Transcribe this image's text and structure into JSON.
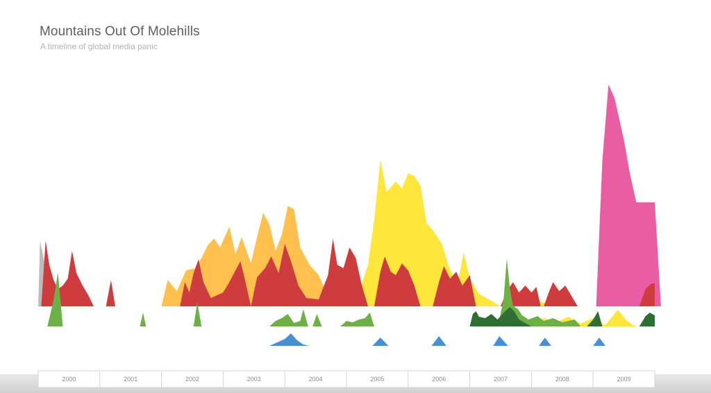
{
  "title": "Mountains Out Of Molehills",
  "subtitle": "A timeline of global media panic",
  "chart_data": {
    "type": "area",
    "title": "Mountains Out Of Molehills",
    "subtitle": "A timeline of global media panic",
    "x_ticks": [
      "2000",
      "2001",
      "2002",
      "2003",
      "2004",
      "2005",
      "2006",
      "2007",
      "2008",
      "2009"
    ],
    "xlim": [
      2000.0,
      2010.0
    ],
    "grid": false,
    "legend": "none",
    "series": [
      {
        "color": "#bcbcbc",
        "band": "upper",
        "points": [
          [
            2000.0,
            0
          ],
          [
            2000.03,
            95
          ],
          [
            2000.12,
            55
          ],
          [
            2000.25,
            22
          ],
          [
            2000.4,
            8
          ],
          [
            2000.55,
            0
          ]
        ]
      },
      {
        "color": "#ffc04e",
        "band": "upper",
        "points": [
          [
            2002.0,
            0
          ],
          [
            2002.1,
            38
          ],
          [
            2002.25,
            22
          ],
          [
            2002.4,
            52
          ],
          [
            2002.55,
            55
          ],
          [
            2002.65,
            70
          ],
          [
            2002.75,
            88
          ],
          [
            2002.85,
            98
          ],
          [
            2002.95,
            85
          ],
          [
            2003.1,
            115
          ],
          [
            2003.2,
            75
          ],
          [
            2003.3,
            100
          ],
          [
            2003.45,
            62
          ],
          [
            2003.55,
            100
          ],
          [
            2003.65,
            135
          ],
          [
            2003.75,
            118
          ],
          [
            2003.85,
            80
          ],
          [
            2003.95,
            103
          ],
          [
            2004.05,
            145
          ],
          [
            2004.15,
            140
          ],
          [
            2004.25,
            85
          ],
          [
            2004.4,
            60
          ],
          [
            2004.55,
            45
          ],
          [
            2004.7,
            15
          ],
          [
            2004.85,
            5
          ],
          [
            2004.95,
            0
          ]
        ]
      },
      {
        "color": "#ffe63a",
        "band": "upper",
        "points": [
          [
            2005.1,
            0
          ],
          [
            2005.2,
            20
          ],
          [
            2005.35,
            60
          ],
          [
            2005.45,
            125
          ],
          [
            2005.55,
            212
          ],
          [
            2005.65,
            165
          ],
          [
            2005.8,
            180
          ],
          [
            2005.9,
            170
          ],
          [
            2006.0,
            192
          ],
          [
            2006.1,
            188
          ],
          [
            2006.2,
            174
          ],
          [
            2006.3,
            120
          ],
          [
            2006.4,
            110
          ],
          [
            2006.55,
            90
          ],
          [
            2006.65,
            60
          ],
          [
            2006.8,
            30
          ],
          [
            2006.9,
            78
          ],
          [
            2007.0,
            40
          ],
          [
            2007.15,
            18
          ],
          [
            2007.35,
            8
          ],
          [
            2007.5,
            0
          ],
          [
            2007.7,
            8
          ],
          [
            2007.85,
            0
          ],
          [
            2008.05,
            12
          ],
          [
            2008.2,
            5
          ],
          [
            2008.4,
            14
          ],
          [
            2008.6,
            4
          ],
          [
            2008.8,
            0
          ]
        ]
      },
      {
        "color": "#ffe63a",
        "band": "middle",
        "points": [
          [
            2007.6,
            0
          ],
          [
            2007.8,
            6
          ],
          [
            2008.0,
            3
          ],
          [
            2008.2,
            12
          ],
          [
            2008.4,
            6
          ],
          [
            2008.6,
            14
          ],
          [
            2008.8,
            4
          ],
          [
            2009.0,
            12
          ],
          [
            2009.2,
            2
          ],
          [
            2009.4,
            24
          ],
          [
            2009.55,
            8
          ],
          [
            2009.65,
            2
          ],
          [
            2009.7,
            0
          ]
        ]
      },
      {
        "color": "#e95ea2",
        "band": "upper",
        "points": [
          [
            2009.05,
            0
          ],
          [
            2009.15,
            210
          ],
          [
            2009.25,
            320
          ],
          [
            2009.35,
            300
          ],
          [
            2009.5,
            240
          ],
          [
            2009.6,
            190
          ],
          [
            2009.7,
            150
          ],
          [
            2009.85,
            150
          ],
          [
            2010.0,
            150
          ],
          [
            2010.1,
            0
          ]
        ]
      },
      {
        "color": "#ce3c3d",
        "band": "upper",
        "points": [
          [
            2000.05,
            0
          ],
          [
            2000.12,
            95
          ],
          [
            2000.18,
            60
          ],
          [
            2000.25,
            38
          ],
          [
            2000.32,
            25
          ],
          [
            2000.4,
            30
          ],
          [
            2000.48,
            40
          ],
          [
            2000.55,
            80
          ],
          [
            2000.62,
            48
          ],
          [
            2000.72,
            30
          ],
          [
            2000.82,
            15
          ],
          [
            2000.9,
            0
          ]
        ]
      },
      {
        "color": "#ce3c3d",
        "band": "upper",
        "points": [
          [
            2001.1,
            0
          ],
          [
            2001.18,
            38
          ],
          [
            2001.25,
            0
          ]
        ]
      },
      {
        "color": "#ce3c3d",
        "band": "upper",
        "points": [
          [
            2002.3,
            0
          ],
          [
            2002.38,
            35
          ],
          [
            2002.45,
            20
          ],
          [
            2002.52,
            48
          ],
          [
            2002.6,
            68
          ],
          [
            2002.68,
            35
          ],
          [
            2002.8,
            12
          ],
          [
            2003.0,
            20
          ],
          [
            2003.1,
            35
          ],
          [
            2003.2,
            52
          ],
          [
            2003.28,
            65
          ],
          [
            2003.35,
            40
          ],
          [
            2003.45,
            0
          ]
        ]
      },
      {
        "color": "#ce3c3d",
        "band": "upper",
        "points": [
          [
            2003.45,
            0
          ],
          [
            2003.55,
            42
          ],
          [
            2003.68,
            55
          ],
          [
            2003.78,
            72
          ],
          [
            2003.9,
            48
          ],
          [
            2004.0,
            90
          ],
          [
            2004.1,
            65
          ],
          [
            2004.22,
            30
          ],
          [
            2004.35,
            12
          ],
          [
            2004.55,
            10
          ],
          [
            2004.7,
            45
          ],
          [
            2004.78,
            98
          ],
          [
            2004.85,
            60
          ],
          [
            2004.95,
            55
          ],
          [
            2005.05,
            85
          ],
          [
            2005.15,
            70
          ],
          [
            2005.25,
            30
          ],
          [
            2005.35,
            0
          ]
        ]
      },
      {
        "color": "#ce3c3d",
        "band": "upper",
        "points": [
          [
            2005.45,
            0
          ],
          [
            2005.55,
            50
          ],
          [
            2005.62,
            72
          ],
          [
            2005.72,
            50
          ],
          [
            2005.8,
            45
          ],
          [
            2005.9,
            62
          ],
          [
            2006.0,
            52
          ],
          [
            2006.1,
            30
          ],
          [
            2006.2,
            0
          ]
        ]
      },
      {
        "color": "#ce3c3d",
        "band": "upper",
        "points": [
          [
            2006.4,
            0
          ],
          [
            2006.5,
            35
          ],
          [
            2006.58,
            58
          ],
          [
            2006.68,
            40
          ],
          [
            2006.78,
            50
          ],
          [
            2006.88,
            30
          ],
          [
            2007.0,
            45
          ],
          [
            2007.1,
            0
          ]
        ]
      },
      {
        "color": "#ce3c3d",
        "band": "upper",
        "points": [
          [
            2007.5,
            0
          ],
          [
            2007.6,
            22
          ],
          [
            2007.7,
            35
          ],
          [
            2007.8,
            20
          ],
          [
            2007.9,
            30
          ],
          [
            2008.0,
            20
          ],
          [
            2008.08,
            28
          ],
          [
            2008.15,
            0
          ]
        ]
      },
      {
        "color": "#ce3c3d",
        "band": "upper",
        "points": [
          [
            2008.2,
            0
          ],
          [
            2008.28,
            20
          ],
          [
            2008.35,
            35
          ],
          [
            2008.45,
            22
          ],
          [
            2008.55,
            30
          ],
          [
            2008.65,
            15
          ],
          [
            2008.75,
            0
          ]
        ]
      },
      {
        "color": "#ce3c3d",
        "band": "upper",
        "points": [
          [
            2009.75,
            0
          ],
          [
            2009.85,
            25
          ],
          [
            2009.95,
            33
          ],
          [
            2010.0,
            33
          ],
          [
            2010.0,
            0
          ]
        ]
      },
      {
        "color": "#6db146",
        "band": "middle",
        "points": [
          [
            2000.15,
            0
          ],
          [
            2000.25,
            38
          ],
          [
            2000.32,
            78
          ],
          [
            2000.4,
            0
          ]
        ]
      },
      {
        "color": "#6db146",
        "band": "middle",
        "points": [
          [
            2001.65,
            0
          ],
          [
            2001.7,
            20
          ],
          [
            2001.75,
            0
          ]
        ]
      },
      {
        "color": "#6db146",
        "band": "middle",
        "points": [
          [
            2002.52,
            0
          ],
          [
            2002.58,
            35
          ],
          [
            2002.65,
            0
          ]
        ]
      },
      {
        "color": "#6db146",
        "band": "middle",
        "points": [
          [
            2003.75,
            0
          ],
          [
            2003.85,
            8
          ],
          [
            2003.95,
            12
          ],
          [
            2004.05,
            18
          ],
          [
            2004.15,
            5
          ],
          [
            2004.25,
            8
          ],
          [
            2004.3,
            25
          ],
          [
            2004.38,
            0
          ]
        ]
      },
      {
        "color": "#6db146",
        "band": "middle",
        "points": [
          [
            2004.45,
            0
          ],
          [
            2004.52,
            18
          ],
          [
            2004.6,
            0
          ]
        ]
      },
      {
        "color": "#6db146",
        "band": "middle",
        "points": [
          [
            2004.9,
            0
          ],
          [
            2005.0,
            8
          ],
          [
            2005.1,
            6
          ],
          [
            2005.2,
            10
          ],
          [
            2005.3,
            12
          ],
          [
            2005.38,
            20
          ],
          [
            2005.45,
            0
          ]
        ]
      },
      {
        "color": "#6db146",
        "band": "middle",
        "points": [
          [
            2007.4,
            0
          ],
          [
            2007.48,
            10
          ],
          [
            2007.55,
            40
          ],
          [
            2007.6,
            98
          ],
          [
            2007.65,
            55
          ],
          [
            2007.7,
            30
          ],
          [
            2007.78,
            25
          ],
          [
            2007.85,
            16
          ],
          [
            2007.95,
            10
          ],
          [
            2008.1,
            15
          ],
          [
            2008.2,
            8
          ],
          [
            2008.35,
            12
          ],
          [
            2008.5,
            6
          ],
          [
            2008.7,
            10
          ],
          [
            2008.8,
            0
          ]
        ]
      },
      {
        "color": "#2f6f36",
        "band": "middle",
        "points": [
          [
            2007.0,
            0
          ],
          [
            2007.05,
            18
          ],
          [
            2007.1,
            22
          ],
          [
            2007.15,
            14
          ],
          [
            2007.25,
            12
          ],
          [
            2007.35,
            18
          ],
          [
            2007.45,
            10
          ],
          [
            2007.55,
            20
          ],
          [
            2007.65,
            28
          ],
          [
            2007.72,
            22
          ],
          [
            2007.8,
            10
          ],
          [
            2007.9,
            5
          ],
          [
            2008.0,
            0
          ]
        ]
      },
      {
        "color": "#2f6f36",
        "band": "middle",
        "points": [
          [
            2008.9,
            0
          ],
          [
            2009.0,
            10
          ],
          [
            2009.08,
            22
          ],
          [
            2009.15,
            0
          ]
        ]
      },
      {
        "color": "#2f6f36",
        "band": "middle",
        "points": [
          [
            2009.75,
            0
          ],
          [
            2009.85,
            15
          ],
          [
            2009.92,
            20
          ],
          [
            2010.0,
            16
          ],
          [
            2010.0,
            0
          ]
        ]
      },
      {
        "color": "#4a8fd6",
        "band": "lower",
        "points": [
          [
            2003.75,
            0
          ],
          [
            2003.85,
            4
          ],
          [
            2004.0,
            10
          ],
          [
            2004.1,
            18
          ],
          [
            2004.2,
            8
          ],
          [
            2004.3,
            2
          ],
          [
            2004.4,
            0
          ]
        ]
      },
      {
        "color": "#4a8fd6",
        "band": "lower",
        "points": [
          [
            2005.42,
            0
          ],
          [
            2005.55,
            12
          ],
          [
            2005.68,
            0
          ]
        ]
      },
      {
        "color": "#4a8fd6",
        "band": "lower",
        "points": [
          [
            2006.38,
            0
          ],
          [
            2006.5,
            14
          ],
          [
            2006.62,
            0
          ]
        ]
      },
      {
        "color": "#4a8fd6",
        "band": "lower",
        "points": [
          [
            2007.38,
            0
          ],
          [
            2007.48,
            14
          ],
          [
            2007.62,
            0
          ]
        ]
      },
      {
        "color": "#4a8fd6",
        "band": "lower",
        "points": [
          [
            2008.12,
            0
          ],
          [
            2008.22,
            12
          ],
          [
            2008.32,
            0
          ]
        ]
      },
      {
        "color": "#4a8fd6",
        "band": "lower",
        "points": [
          [
            2009.0,
            0
          ],
          [
            2009.1,
            12
          ],
          [
            2009.2,
            0
          ]
        ]
      }
    ]
  }
}
